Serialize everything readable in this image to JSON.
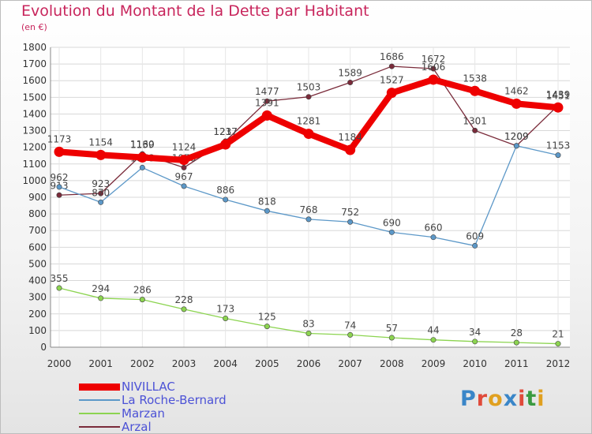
{
  "title": "Evolution du Montant de la Dette par Habitant",
  "subtitle": "(en €)",
  "logo": {
    "text": "Proxiti",
    "letter_colors": [
      "#3a86c8",
      "#e04a3a",
      "#e0a020",
      "#3a86c8",
      "#e04a3a",
      "#3a9a40",
      "#e0a020"
    ]
  },
  "chart_data": {
    "type": "line",
    "title": "Evolution du Montant de la Dette par Habitant",
    "subtitle": "(en €)",
    "xlabel": "",
    "ylabel": "",
    "x": [
      "2000",
      "2001",
      "2002",
      "2003",
      "2004",
      "2005",
      "2006",
      "2007",
      "2008",
      "2009",
      "2010",
      "2011",
      "2012"
    ],
    "ylim": [
      0,
      1800
    ],
    "yticks": [
      0,
      100,
      200,
      300,
      400,
      500,
      600,
      700,
      800,
      900,
      1000,
      1100,
      1200,
      1300,
      1400,
      1500,
      1600,
      1700,
      1800
    ],
    "grid": true,
    "legend": "bottom-left",
    "series": [
      {
        "name": "NIVILLAC",
        "color": "#ee0000",
        "values": [
          1173,
          1154,
          1139,
          1124,
          1217,
          1391,
          1281,
          1184,
          1527,
          1606,
          1538,
          1462,
          1439
        ]
      },
      {
        "name": "La Roche-Bernard",
        "color": "#5c98c8",
        "values": [
          962,
          870,
          1078,
          967,
          886,
          818,
          768,
          752,
          690,
          660,
          609,
          1209,
          1153
        ]
      },
      {
        "name": "Marzan",
        "color": "#8cd450",
        "values": [
          355,
          294,
          286,
          228,
          173,
          125,
          83,
          74,
          57,
          44,
          34,
          28,
          21
        ]
      },
      {
        "name": "Arzal",
        "color": "#7a2b3a",
        "values": [
          913,
          923,
          1160,
          1078,
          1237,
          1477,
          1503,
          1589,
          1686,
          1672,
          1301,
          1209,
          1451
        ]
      }
    ]
  }
}
